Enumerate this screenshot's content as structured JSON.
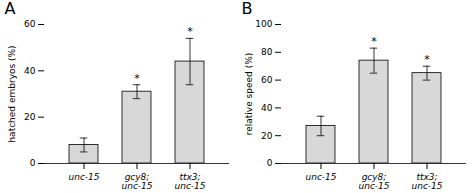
{
  "chart_data": [
    {
      "type": "bar",
      "title": "A",
      "ylabel": "hatched embryos (%)",
      "categories": [
        "unc-15",
        "gcy8;\nunc-15",
        "ttx3;\nunc-15"
      ],
      "values": [
        8,
        31,
        44
      ],
      "errors": [
        3,
        3,
        10
      ],
      "color": "#d8d8d8",
      "ylim": [
        0,
        60
      ],
      "yticks": [
        0,
        20,
        40,
        60
      ],
      "grid": false,
      "annotations": [
        {
          "category": "gcy8;\nunc-15",
          "text": "*"
        },
        {
          "category": "ttx3;\nunc-15",
          "text": "*"
        }
      ]
    },
    {
      "type": "bar",
      "title": "B",
      "ylabel": "relative speed (%)",
      "categories": [
        "unc-15",
        "gcy8;\nunc-15",
        "ttx3;\nunc-15"
      ],
      "values": [
        27,
        74,
        65
      ],
      "errors": [
        7,
        9,
        5
      ],
      "color": "#d8d8d8",
      "ylim": [
        0,
        100
      ],
      "yticks": [
        0,
        20,
        40,
        60,
        80,
        100
      ],
      "grid": false,
      "annotations": [
        {
          "category": "gcy8;\nunc-15",
          "text": "*"
        },
        {
          "category": "ttx3;\nunc-15",
          "text": "*"
        }
      ]
    }
  ]
}
